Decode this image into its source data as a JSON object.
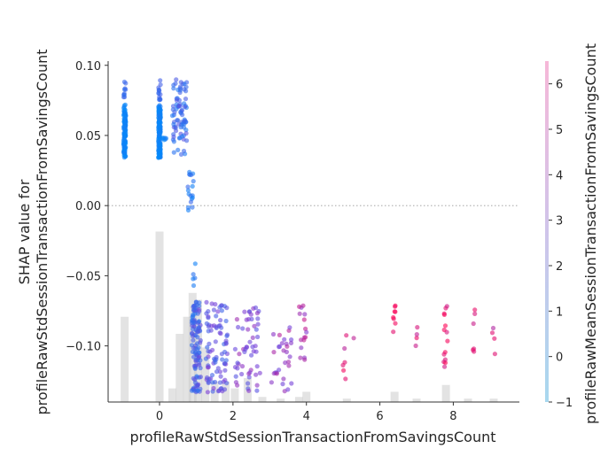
{
  "chart_data": {
    "type": "scatter",
    "xlabel": "profileRawStdSessionTransactionFromSavingsCount",
    "ylabel_line1": "SHAP value for",
    "ylabel_line2": "profileRawStdSessionTransactionFromSavingsCount",
    "colorbar_label": "profileRawMeanSessionTransactionFromSavingsCount",
    "xlim": [
      -1.4,
      9.8
    ],
    "ylim": [
      -0.14,
      0.103
    ],
    "x_ticks": [
      0,
      2,
      4,
      6,
      8
    ],
    "x_tick_labels": [
      "0",
      "2",
      "4",
      "6",
      "8"
    ],
    "y_ticks": [
      0.1,
      0.05,
      0.0,
      -0.05,
      -0.1
    ],
    "y_tick_labels": [
      "0.10",
      "0.05",
      "0.00",
      "−0.05",
      "−0.10"
    ],
    "colorbar_range": [
      -1,
      6.5
    ],
    "colorbar_ticks": [
      6,
      5,
      4,
      3,
      2,
      1,
      0,
      -1
    ],
    "colorbar_tick_labels": [
      "6",
      "5",
      "4",
      "3",
      "2",
      "1",
      "0",
      "−1"
    ],
    "zero_line": true,
    "colors": {
      "low": "#008bfb",
      "mid": "#7a3fd8",
      "high": "#ff0052",
      "histogram": "#cccccc"
    },
    "histogram": {
      "bin_centers": [
        -0.95,
        0.0,
        0.35,
        0.55,
        0.75,
        0.9,
        1.05,
        1.25,
        1.5,
        1.8,
        2.05,
        2.4,
        2.8,
        3.3,
        3.8,
        4.0,
        5.1,
        6.4,
        7.0,
        7.8,
        8.4,
        9.1
      ],
      "relative_heights": [
        0.25,
        0.5,
        0.04,
        0.2,
        0.25,
        0.32,
        0.3,
        0.16,
        0.06,
        0.06,
        0.04,
        0.07,
        0.015,
        0.01,
        0.015,
        0.03,
        0.01,
        0.03,
        0.01,
        0.05,
        0.01,
        0.01
      ]
    },
    "clusters": [
      {
        "x": -0.95,
        "x_spread": 0.03,
        "y_min": 0.034,
        "y_max": 0.072,
        "n": 110,
        "c_min": -1.0,
        "c_max": -0.3
      },
      {
        "x": -0.95,
        "x_spread": 0.03,
        "y_min": 0.077,
        "y_max": 0.09,
        "n": 10,
        "c_min": 0.3,
        "c_max": 1.0
      },
      {
        "x": 0.0,
        "x_spread": 0.03,
        "y_min": 0.034,
        "y_max": 0.072,
        "n": 150,
        "c_min": -1.0,
        "c_max": -0.2
      },
      {
        "x": 0.0,
        "x_spread": 0.03,
        "y_min": 0.072,
        "y_max": 0.09,
        "n": 14,
        "c_min": 0.3,
        "c_max": 1.2
      },
      {
        "x": 0.15,
        "x_spread": 0.06,
        "y_min": 0.046,
        "y_max": 0.049,
        "n": 6,
        "c_min": -0.8,
        "c_max": -0.3
      },
      {
        "x": 0.55,
        "x_spread": 0.2,
        "y_min": 0.036,
        "y_max": 0.09,
        "n": 80,
        "c_min": -0.2,
        "c_max": 1.8
      },
      {
        "x": 0.85,
        "x_spread": 0.08,
        "y_min": -0.005,
        "y_max": 0.025,
        "n": 18,
        "c_min": -0.5,
        "c_max": 0.8
      },
      {
        "x": 0.95,
        "x_spread": 0.06,
        "y_min": -0.058,
        "y_max": -0.036,
        "n": 5,
        "c_min": -0.8,
        "c_max": 0.3
      },
      {
        "x": 1.0,
        "x_spread": 0.12,
        "y_min": -0.133,
        "y_max": -0.068,
        "n": 110,
        "c_min": 0.0,
        "c_max": 2.3
      },
      {
        "x": 1.55,
        "x_spread": 0.3,
        "y_min": -0.133,
        "y_max": -0.068,
        "n": 90,
        "c_min": 0.8,
        "c_max": 3.0
      },
      {
        "x": 2.4,
        "x_spread": 0.35,
        "y_min": -0.133,
        "y_max": -0.072,
        "n": 55,
        "c_min": 1.5,
        "c_max": 3.8
      },
      {
        "x": 3.35,
        "x_spread": 0.3,
        "y_min": -0.133,
        "y_max": -0.08,
        "n": 30,
        "c_min": 2.2,
        "c_max": 4.5
      },
      {
        "x": 3.9,
        "x_spread": 0.1,
        "y_min": -0.112,
        "y_max": -0.071,
        "n": 16,
        "c_min": 3.0,
        "c_max": 5.2
      },
      {
        "x": 5.05,
        "x_spread": 0.06,
        "y_min": -0.127,
        "y_max": -0.09,
        "n": 6,
        "c_min": 4.5,
        "c_max": 6.3
      },
      {
        "x": 5.3,
        "x_spread": 0.06,
        "y_min": -0.097,
        "y_max": -0.094,
        "n": 1,
        "c_min": 4.5,
        "c_max": 5.5
      },
      {
        "x": 6.4,
        "x_spread": 0.04,
        "y_min": -0.09,
        "y_max": -0.071,
        "n": 8,
        "c_min": 5.5,
        "c_max": 6.5
      },
      {
        "x": 7.0,
        "x_spread": 0.04,
        "y_min": -0.104,
        "y_max": -0.085,
        "n": 4,
        "c_min": 4.5,
        "c_max": 6.0
      },
      {
        "x": 7.8,
        "x_spread": 0.06,
        "y_min": -0.115,
        "y_max": -0.071,
        "n": 14,
        "c_min": 5.0,
        "c_max": 6.5
      },
      {
        "x": 8.55,
        "x_spread": 0.04,
        "y_min": -0.106,
        "y_max": -0.071,
        "n": 6,
        "c_min": 4.5,
        "c_max": 6.0
      },
      {
        "x": 9.1,
        "x_spread": 0.04,
        "y_min": -0.106,
        "y_max": -0.085,
        "n": 4,
        "c_min": 4.0,
        "c_max": 6.0
      }
    ]
  }
}
